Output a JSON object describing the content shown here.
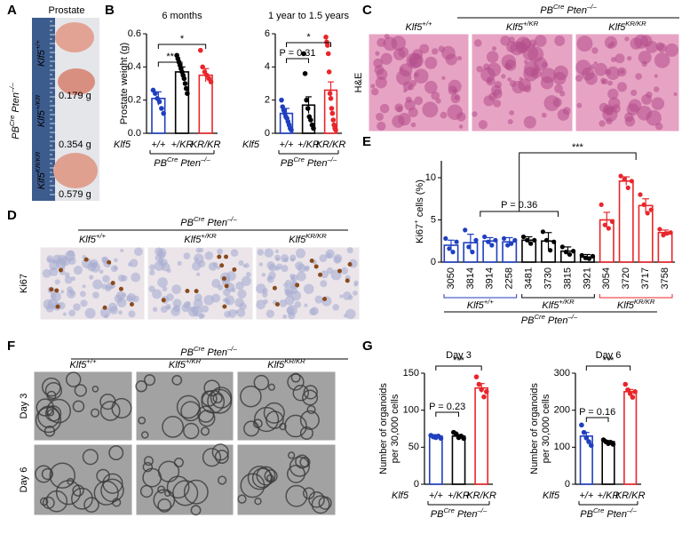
{
  "panels": {
    "A": {
      "label": "A",
      "title": "Prostate",
      "group": [
        "PB",
        "Cre",
        " Pten",
        "–/–"
      ],
      "genotypes": [
        [
          "Klf5",
          "+/+"
        ],
        [
          "Klf5",
          "+/KR"
        ],
        [
          "Klf5",
          "KR/KR"
        ]
      ],
      "weights": [
        "0.179 g",
        "0.354 g",
        "0.579 g"
      ]
    },
    "B": {
      "label": "B"
    },
    "C": {
      "label": "C",
      "group": [
        "PB",
        "Cre",
        " Pten",
        "–/–"
      ],
      "columns": [
        [
          "Klf5",
          "+/+"
        ],
        [
          "Klf5",
          "+/KR"
        ],
        [
          "Klf5",
          "KR/KR"
        ]
      ],
      "rows": [
        "H&E"
      ]
    },
    "D": {
      "label": "D",
      "group": [
        "PB",
        "Cre",
        " Pten",
        "–/–"
      ],
      "columns": [
        [
          "Klf5",
          "+/+"
        ],
        [
          "Klf5",
          "+/KR"
        ],
        [
          "Klf5",
          "KR/KR"
        ]
      ],
      "rows": [
        "Ki67"
      ]
    },
    "E": {
      "label": "E"
    },
    "F": {
      "label": "F",
      "group": [
        "PB",
        "Cre",
        " Pten",
        "–/–"
      ],
      "columns": [
        [
          "Klf5",
          "+/+"
        ],
        [
          "Klf5",
          "+/KR"
        ],
        [
          "Klf5",
          "KR/KR"
        ]
      ],
      "rows": [
        "Day 3",
        "Day 6"
      ]
    },
    "G": {
      "label": "G"
    }
  },
  "chart_data": [
    {
      "type": "bar",
      "title": "6 months",
      "ylabel": "Prostate weight (g)",
      "x_prefix": "Klf5",
      "categories": [
        "+/+",
        "+/KR",
        "KR/KR"
      ],
      "colors": [
        "#1f3fbf",
        "#000000",
        "#e8262b"
      ],
      "values": [
        0.21,
        0.37,
        0.35
      ],
      "errors": [
        0.04,
        0.03,
        0.04
      ],
      "points": [
        [
          0.26,
          0.24,
          0.21,
          0.19,
          0.15,
          0.12
        ],
        [
          0.47,
          0.45,
          0.43,
          0.41,
          0.39,
          0.37,
          0.35,
          0.33,
          0.3,
          0.27,
          0.24
        ],
        [
          0.5,
          0.4,
          0.37,
          0.35,
          0.33,
          0.31
        ]
      ],
      "ylim": [
        0,
        0.6
      ],
      "yticks": [
        {
          "value": 0,
          "label": "0.0"
        },
        0.2,
        0.4,
        0.6
      ],
      "annotations": [
        "**",
        "*"
      ],
      "group_label": [
        "PB",
        "Cre",
        " Pten",
        "–/–"
      ]
    },
    {
      "type": "bar",
      "title": "1 year to 1.5 years",
      "x_prefix": "Klf5",
      "categories": [
        "+/+",
        "+/KR",
        "KR/KR"
      ],
      "colors": [
        "#1f3fbf",
        "#000000",
        "#e8262b"
      ],
      "values": [
        1.2,
        1.7,
        2.6
      ],
      "errors": [
        0.3,
        0.5,
        0.5
      ],
      "points": [
        [
          2.0,
          1.6,
          1.4,
          1.2,
          1.0,
          0.9,
          0.7,
          0.5,
          0.3,
          0.2
        ],
        [
          4.8,
          3.6,
          2.0,
          1.5,
          1.0,
          0.8,
          0.5,
          0.3
        ],
        [
          5.8,
          5.5,
          5.3,
          4.8,
          3.7,
          2.4,
          2.1,
          1.5,
          1.2,
          0.8,
          0.5,
          0.3,
          0.2
        ]
      ],
      "ylim": [
        0,
        6
      ],
      "yticks": [
        0,
        2,
        4,
        6
      ],
      "annotations": [
        "P = 0.31",
        "*"
      ],
      "group_label": [
        "PB",
        "Cre",
        " Pten",
        "–/–"
      ]
    },
    {
      "type": "bar",
      "ylabel": [
        "Ki67",
        "+",
        " cells (%)"
      ],
      "categories": [
        "3050",
        "3814",
        "3914",
        "2258",
        "3481",
        "3730",
        "3815",
        "3921",
        "3054",
        "3720",
        "3717",
        "3758"
      ],
      "colors": [
        "#1f3fbf",
        "#1f3fbf",
        "#1f3fbf",
        "#1f3fbf",
        "#000000",
        "#000000",
        "#000000",
        "#000000",
        "#e8262b",
        "#e8262b",
        "#e8262b",
        "#e8262b"
      ],
      "values": [
        2.0,
        2.3,
        2.5,
        2.4,
        2.6,
        2.5,
        1.3,
        0.6,
        5.0,
        9.6,
        6.7,
        3.5
      ],
      "errors": [
        0.6,
        1.0,
        0.4,
        0.5,
        0.4,
        1.0,
        0.5,
        0.3,
        0.9,
        0.5,
        0.8,
        0.3
      ],
      "points": [
        [
          2.8,
          1.6,
          1.2,
          2.4
        ],
        [
          3.8,
          1.8,
          1.2,
          2.6
        ],
        [
          3.0,
          2.4,
          2.0,
          2.6
        ],
        [
          2.8,
          2.0,
          2.2,
          2.6
        ],
        [
          3.0,
          2.6,
          2.2,
          2.6
        ],
        [
          3.6,
          2.6,
          1.4,
          2.4
        ],
        [
          1.8,
          1.2,
          0.9,
          1.3
        ],
        [
          0.8,
          0.5,
          0.4,
          0.7
        ],
        [
          6.8,
          4.4,
          4.0,
          4.8
        ],
        [
          10.2,
          9.8,
          8.8,
          9.6
        ],
        [
          8.0,
          6.8,
          5.8,
          6.2
        ],
        [
          3.9,
          3.2,
          3.4,
          3.5
        ]
      ],
      "ylim": [
        0,
        12
      ],
      "yticks": [
        0,
        5,
        10
      ],
      "annotations": [
        "***",
        "P = 0.36"
      ],
      "groups": [
        [
          "Klf5",
          "+/+"
        ],
        [
          "Klf5",
          "+/KR"
        ],
        [
          "Klf5",
          "KR/KR"
        ]
      ],
      "group_colors": [
        "#1f3fbf",
        "#000000",
        "#e8262b"
      ],
      "group_label": [
        "PB",
        "Cre",
        " Pten",
        "–/–"
      ]
    },
    {
      "type": "bar",
      "title": "Day 3",
      "ylabel": [
        "Number of organoids",
        "per 30,000 cells"
      ],
      "x_prefix": "Klf5",
      "categories": [
        "+/+",
        "+/KR",
        "KR/KR"
      ],
      "colors": [
        "#1f3fbf",
        "#000000",
        "#e8262b"
      ],
      "values": [
        65,
        65,
        130
      ],
      "errors": [
        2,
        2,
        6
      ],
      "points": [
        [
          66,
          64,
          63,
          65,
          62
        ],
        [
          70,
          68,
          63,
          65,
          62
        ],
        [
          145,
          135,
          128,
          118,
          125
        ]
      ],
      "ylim": [
        0,
        150
      ],
      "yticks": [
        0,
        50,
        100,
        150
      ],
      "annotations": [
        "P = 0.23",
        "***"
      ],
      "group_label": [
        "PB",
        "Cre",
        " Pten",
        "–/–"
      ]
    },
    {
      "type": "bar",
      "title": "Day 6",
      "ylabel": [
        "Number of organoids",
        "per 30,000 cells"
      ],
      "x_prefix": "Klf5",
      "categories": [
        "+/+",
        "+/KR",
        "KR/KR"
      ],
      "colors": [
        "#1f3fbf",
        "#000000",
        "#e8262b"
      ],
      "values": [
        130,
        115,
        250
      ],
      "errors": [
        10,
        3,
        6
      ],
      "points": [
        [
          160,
          140,
          125,
          115,
          105
        ],
        [
          120,
          115,
          110,
          113,
          108
        ],
        [
          270,
          255,
          245,
          235,
          250
        ]
      ],
      "ylim": [
        0,
        300
      ],
      "yticks": [
        0,
        100,
        200,
        300
      ],
      "annotations": [
        "P = 0.16",
        "***"
      ],
      "group_label": [
        "PB",
        "Cre",
        " Pten",
        "–/–"
      ]
    }
  ]
}
